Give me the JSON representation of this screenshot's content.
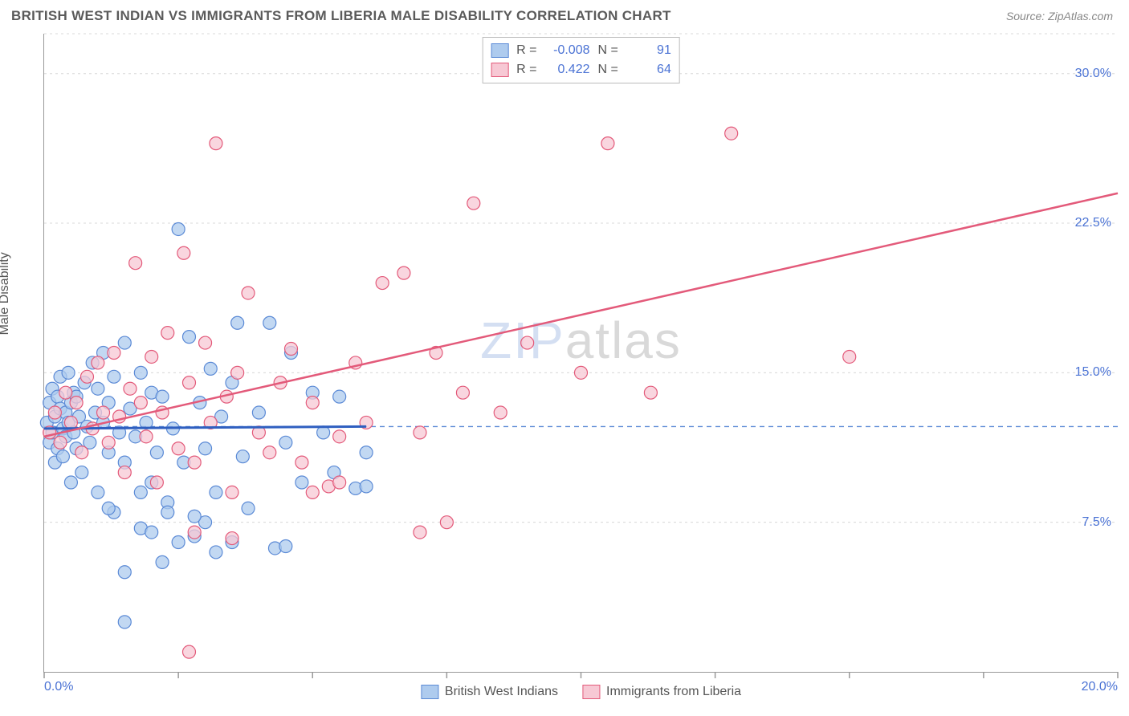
{
  "header": {
    "title": "BRITISH WEST INDIAN VS IMMIGRANTS FROM LIBERIA MALE DISABILITY CORRELATION CHART",
    "source": "Source: ZipAtlas.com"
  },
  "chart": {
    "type": "scatter",
    "ylabel": "Male Disability",
    "watermark_zip": "ZIP",
    "watermark_atlas": "atlas",
    "xlim": [
      0,
      20
    ],
    "ylim": [
      0,
      32
    ],
    "xticks": [
      0,
      2.5,
      5,
      7.5,
      10,
      12.5,
      15,
      17.5,
      20
    ],
    "xtick_labels": {
      "0": "0.0%",
      "20": "20.0%"
    },
    "yticks": [
      7.5,
      15,
      22.5,
      30
    ],
    "ytick_labels": {
      "7.5": "7.5%",
      "15": "15.0%",
      "22.5": "22.5%",
      "30": "30.0%"
    },
    "grid_color": "#d8d8d8",
    "grid_dash": "3,4",
    "axis_color": "#999999",
    "tick_color": "#999999",
    "background_color": "#ffffff",
    "point_radius": 8,
    "point_stroke_width": 1.2,
    "reference_line": {
      "y": 12.3,
      "color": "#5b8ad6",
      "dash": "6,5",
      "width": 1.4
    },
    "series": [
      {
        "name": "British West Indians",
        "fill": "#aecbee",
        "stroke": "#5b8ad6",
        "r_label": "R =",
        "r_value": "-0.008",
        "n_label": "N =",
        "n_value": "91",
        "trend": {
          "x1": 0,
          "y1": 12.2,
          "x2": 6.0,
          "y2": 12.3,
          "color": "#2f5fc0",
          "width": 3
        },
        "points": [
          [
            0.05,
            12.5
          ],
          [
            0.1,
            13.5
          ],
          [
            0.1,
            11.5
          ],
          [
            0.15,
            14.2
          ],
          [
            0.15,
            12.0
          ],
          [
            0.2,
            12.8
          ],
          [
            0.2,
            10.5
          ],
          [
            0.25,
            13.8
          ],
          [
            0.25,
            11.2
          ],
          [
            0.3,
            13.2
          ],
          [
            0.3,
            14.8
          ],
          [
            0.35,
            12.2
          ],
          [
            0.35,
            10.8
          ],
          [
            0.4,
            13.0
          ],
          [
            0.4,
            11.8
          ],
          [
            0.45,
            15.0
          ],
          [
            0.45,
            12.5
          ],
          [
            0.5,
            13.5
          ],
          [
            0.5,
            9.5
          ],
          [
            0.55,
            14.0
          ],
          [
            0.55,
            12.0
          ],
          [
            0.6,
            11.2
          ],
          [
            0.6,
            13.8
          ],
          [
            0.65,
            12.8
          ],
          [
            0.7,
            10.0
          ],
          [
            0.75,
            14.5
          ],
          [
            0.8,
            12.3
          ],
          [
            0.85,
            11.5
          ],
          [
            0.9,
            15.5
          ],
          [
            0.95,
            13.0
          ],
          [
            1.0,
            14.2
          ],
          [
            1.0,
            9.0
          ],
          [
            1.1,
            12.5
          ],
          [
            1.1,
            16.0
          ],
          [
            1.2,
            11.0
          ],
          [
            1.2,
            13.5
          ],
          [
            1.3,
            8.0
          ],
          [
            1.3,
            14.8
          ],
          [
            1.4,
            12.0
          ],
          [
            1.5,
            10.5
          ],
          [
            1.5,
            16.5
          ],
          [
            1.6,
            13.2
          ],
          [
            1.7,
            11.8
          ],
          [
            1.8,
            7.2
          ],
          [
            1.8,
            15.0
          ],
          [
            1.9,
            12.5
          ],
          [
            2.0,
            9.5
          ],
          [
            2.0,
            14.0
          ],
          [
            2.1,
            11.0
          ],
          [
            2.2,
            13.8
          ],
          [
            2.3,
            8.5
          ],
          [
            2.4,
            12.2
          ],
          [
            2.5,
            22.2
          ],
          [
            2.6,
            10.5
          ],
          [
            2.7,
            16.8
          ],
          [
            2.8,
            6.8
          ],
          [
            2.9,
            13.5
          ],
          [
            3.0,
            11.2
          ],
          [
            3.0,
            7.5
          ],
          [
            3.1,
            15.2
          ],
          [
            3.2,
            9.0
          ],
          [
            3.3,
            12.8
          ],
          [
            3.5,
            14.5
          ],
          [
            3.6,
            17.5
          ],
          [
            3.7,
            10.8
          ],
          [
            3.8,
            8.2
          ],
          [
            4.0,
            13.0
          ],
          [
            4.2,
            17.5
          ],
          [
            4.3,
            6.2
          ],
          [
            4.5,
            11.5
          ],
          [
            4.6,
            16.0
          ],
          [
            4.8,
            9.5
          ],
          [
            5.0,
            14.0
          ],
          [
            5.2,
            12.0
          ],
          [
            5.4,
            10.0
          ],
          [
            5.5,
            13.8
          ],
          [
            5.8,
            9.2
          ],
          [
            6.0,
            11.0
          ],
          [
            6.0,
            9.3
          ],
          [
            1.5,
            2.5
          ],
          [
            1.5,
            5.0
          ],
          [
            2.0,
            7.0
          ],
          [
            2.2,
            5.5
          ],
          [
            2.5,
            6.5
          ],
          [
            2.8,
            7.8
          ],
          [
            3.2,
            6.0
          ],
          [
            3.5,
            6.5
          ],
          [
            4.5,
            6.3
          ],
          [
            1.2,
            8.2
          ],
          [
            1.8,
            9.0
          ],
          [
            2.3,
            8.0
          ]
        ]
      },
      {
        "name": "Immigrants from Liberia",
        "fill": "#f7c8d4",
        "stroke": "#e35a7a",
        "r_label": "R =",
        "r_value": "0.422",
        "n_label": "N =",
        "n_value": "64",
        "trend": {
          "x1": 0,
          "y1": 11.8,
          "x2": 20.0,
          "y2": 24.0,
          "color": "#e35a7a",
          "width": 2.5
        },
        "points": [
          [
            0.1,
            12.0
          ],
          [
            0.2,
            13.0
          ],
          [
            0.3,
            11.5
          ],
          [
            0.4,
            14.0
          ],
          [
            0.5,
            12.5
          ],
          [
            0.6,
            13.5
          ],
          [
            0.7,
            11.0
          ],
          [
            0.8,
            14.8
          ],
          [
            0.9,
            12.2
          ],
          [
            1.0,
            15.5
          ],
          [
            1.1,
            13.0
          ],
          [
            1.2,
            11.5
          ],
          [
            1.3,
            16.0
          ],
          [
            1.4,
            12.8
          ],
          [
            1.5,
            10.0
          ],
          [
            1.6,
            14.2
          ],
          [
            1.7,
            20.5
          ],
          [
            1.8,
            13.5
          ],
          [
            1.9,
            11.8
          ],
          [
            2.0,
            15.8
          ],
          [
            2.1,
            9.5
          ],
          [
            2.2,
            13.0
          ],
          [
            2.3,
            17.0
          ],
          [
            2.5,
            11.2
          ],
          [
            2.6,
            21.0
          ],
          [
            2.7,
            14.5
          ],
          [
            2.8,
            10.5
          ],
          [
            2.8,
            7.0
          ],
          [
            3.0,
            16.5
          ],
          [
            3.1,
            12.5
          ],
          [
            3.2,
            26.5
          ],
          [
            3.4,
            13.8
          ],
          [
            3.5,
            9.0
          ],
          [
            3.6,
            15.0
          ],
          [
            3.8,
            19.0
          ],
          [
            4.0,
            12.0
          ],
          [
            4.2,
            11.0
          ],
          [
            4.4,
            14.5
          ],
          [
            4.6,
            16.2
          ],
          [
            4.8,
            10.5
          ],
          [
            5.0,
            9.0
          ],
          [
            5.0,
            13.5
          ],
          [
            5.3,
            9.3
          ],
          [
            5.5,
            11.8
          ],
          [
            5.8,
            15.5
          ],
          [
            6.0,
            12.5
          ],
          [
            6.3,
            19.5
          ],
          [
            6.7,
            20.0
          ],
          [
            7.0,
            12.0
          ],
          [
            7.0,
            7.0
          ],
          [
            7.3,
            16.0
          ],
          [
            7.5,
            7.5
          ],
          [
            7.8,
            14.0
          ],
          [
            8.0,
            23.5
          ],
          [
            8.5,
            13.0
          ],
          [
            9.0,
            16.5
          ],
          [
            10.0,
            15.0
          ],
          [
            10.5,
            26.5
          ],
          [
            11.3,
            14.0
          ],
          [
            12.8,
            27.0
          ],
          [
            15.0,
            15.8
          ],
          [
            2.7,
            1.0
          ],
          [
            3.5,
            6.7
          ],
          [
            5.5,
            9.5
          ]
        ]
      }
    ],
    "legend_top": {
      "border_color": "#bbbbbb"
    },
    "legend_bottom": {
      "items": [
        "British West Indians",
        "Immigrants from Liberia"
      ]
    }
  }
}
